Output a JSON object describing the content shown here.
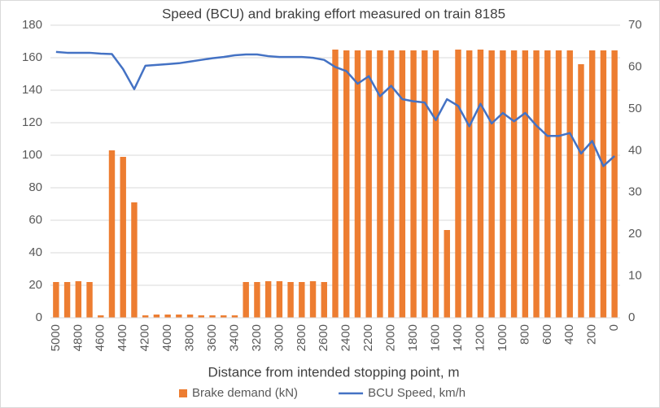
{
  "chart_data": {
    "type": "bar_line",
    "title": "Speed (BCU) and braking effort measured on train 8185",
    "x_label": "Distance from intended stopping point, m",
    "categories": [
      "5000",
      null,
      "4800",
      null,
      "4600",
      null,
      "4400",
      null,
      "4200",
      null,
      "4000",
      null,
      "3800",
      null,
      "3600",
      null,
      "3400",
      null,
      "3200",
      null,
      "3000",
      null,
      "2800",
      null,
      "2600",
      null,
      "2400",
      null,
      "2200",
      null,
      "2000",
      null,
      "1800",
      null,
      "1600",
      null,
      "1400",
      null,
      "1200",
      null,
      "1000",
      null,
      "800",
      null,
      "600",
      null,
      "400",
      null,
      "200",
      null,
      "0"
    ],
    "series": [
      {
        "name": "Brake demand (kN)",
        "color": "#ed7d31",
        "kind": "bar",
        "axis": "y",
        "values": [
          22,
          22,
          22.5,
          22,
          1.5,
          103,
          99,
          71,
          1.5,
          2,
          2,
          2,
          2,
          1.5,
          1.5,
          1.5,
          1.5,
          22,
          22,
          22.5,
          22.5,
          22,
          22,
          22.5,
          22,
          165,
          164.5,
          164.5,
          164.5,
          164.5,
          164.5,
          164.5,
          164.5,
          164.5,
          164.5,
          54,
          165,
          164.5,
          165,
          164.5,
          164.5,
          164.5,
          164.5,
          164.5,
          164.5,
          164.5,
          164.5,
          156,
          164.5,
          164.5,
          164.5
        ]
      },
      {
        "name": "BCU Speed, km/h",
        "color": "#4472c4",
        "kind": "line",
        "axis": "y2",
        "values": [
          63.6,
          63.4,
          63.4,
          63.4,
          63.2,
          63.1,
          59.5,
          54.7,
          60.3,
          60.5,
          60.7,
          60.9,
          61.3,
          61.7,
          62.1,
          62.4,
          62.8,
          63,
          63,
          62.6,
          62.4,
          62.4,
          62.4,
          62.2,
          61.7,
          60,
          59,
          56,
          57.8,
          53,
          55.5,
          52.3,
          51.8,
          51.5,
          47.3,
          52.3,
          50.7,
          45.8,
          51.2,
          46.5,
          49,
          47,
          49,
          46,
          43.5,
          43.5,
          44.2,
          39.3,
          42.3,
          36.3,
          38.7
        ]
      }
    ],
    "ylim": [
      0,
      180
    ],
    "yticks": [
      0,
      20,
      40,
      60,
      80,
      100,
      120,
      140,
      160,
      180
    ],
    "y2lim": [
      0,
      70
    ],
    "y2ticks": [
      0,
      10,
      20,
      30,
      40,
      50,
      60,
      70
    ],
    "grid": true,
    "legend": "bottom"
  }
}
